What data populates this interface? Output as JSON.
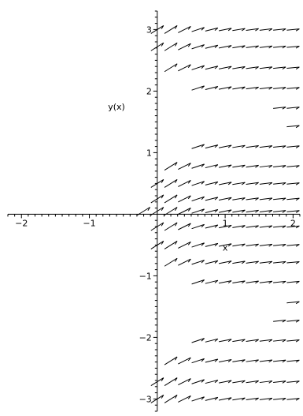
{
  "chart_data": {
    "type": "direction-field",
    "title": "",
    "xlabel": "x",
    "ylabel": "y(x)",
    "xlim": [
      -2.2,
      2.1
    ],
    "ylim": [
      -3.2,
      3.3
    ],
    "xticks": [
      {
        "value": -2,
        "label": "−2"
      },
      {
        "value": -1,
        "label": "−1"
      },
      {
        "value": 1,
        "label": "1"
      },
      {
        "value": 2,
        "label": "2"
      }
    ],
    "yticks": [
      {
        "value": 3,
        "label": "3"
      },
      {
        "value": 2,
        "label": "2"
      },
      {
        "value": 1,
        "label": "1"
      },
      {
        "value": -1,
        "label": "−1"
      },
      {
        "value": -2,
        "label": "−2"
      },
      {
        "value": -3,
        "label": "−3"
      }
    ],
    "grid": false,
    "arrow_color": "#000000",
    "field_rows": [
      {
        "y": 3.0,
        "x_start": 0.0,
        "x_end": 2.05
      },
      {
        "y": 2.72,
        "x_start": 0.0,
        "x_end": 2.05
      },
      {
        "y": 2.38,
        "x_start": 0.25,
        "x_end": 2.05
      },
      {
        "y": 2.05,
        "x_start": 0.65,
        "x_end": 2.05
      },
      {
        "y": 1.73,
        "x_start": 1.8,
        "x_end": 2.05
      },
      {
        "y": 1.43,
        "x_start": 2.0,
        "x_end": 2.05
      },
      {
        "y": 1.1,
        "x_start": 0.65,
        "x_end": 2.05
      },
      {
        "y": 0.78,
        "x_start": 0.25,
        "x_end": 2.05
      },
      {
        "y": 0.5,
        "x_start": 0.0,
        "x_end": 2.05
      },
      {
        "y": 0.25,
        "x_start": 0.0,
        "x_end": 2.05
      },
      {
        "y": 0.05,
        "x_start": -0.2,
        "x_end": 2.05
      },
      {
        "y": -0.2,
        "x_start": -0.1,
        "x_end": 2.05
      },
      {
        "y": -0.5,
        "x_start": 0.0,
        "x_end": 2.05
      },
      {
        "y": -0.78,
        "x_start": 0.25,
        "x_end": 2.05
      },
      {
        "y": -1.1,
        "x_start": 0.65,
        "x_end": 2.05
      },
      {
        "y": -1.43,
        "x_start": 2.0,
        "x_end": 2.05
      },
      {
        "y": -1.73,
        "x_start": 1.8,
        "x_end": 2.05
      },
      {
        "y": -2.05,
        "x_start": 0.65,
        "x_end": 2.05
      },
      {
        "y": -2.38,
        "x_start": 0.25,
        "x_end": 2.05
      },
      {
        "y": -2.72,
        "x_start": 0.0,
        "x_end": 2.05
      },
      {
        "y": -3.0,
        "x_start": 0.0,
        "x_end": 2.05
      }
    ]
  }
}
